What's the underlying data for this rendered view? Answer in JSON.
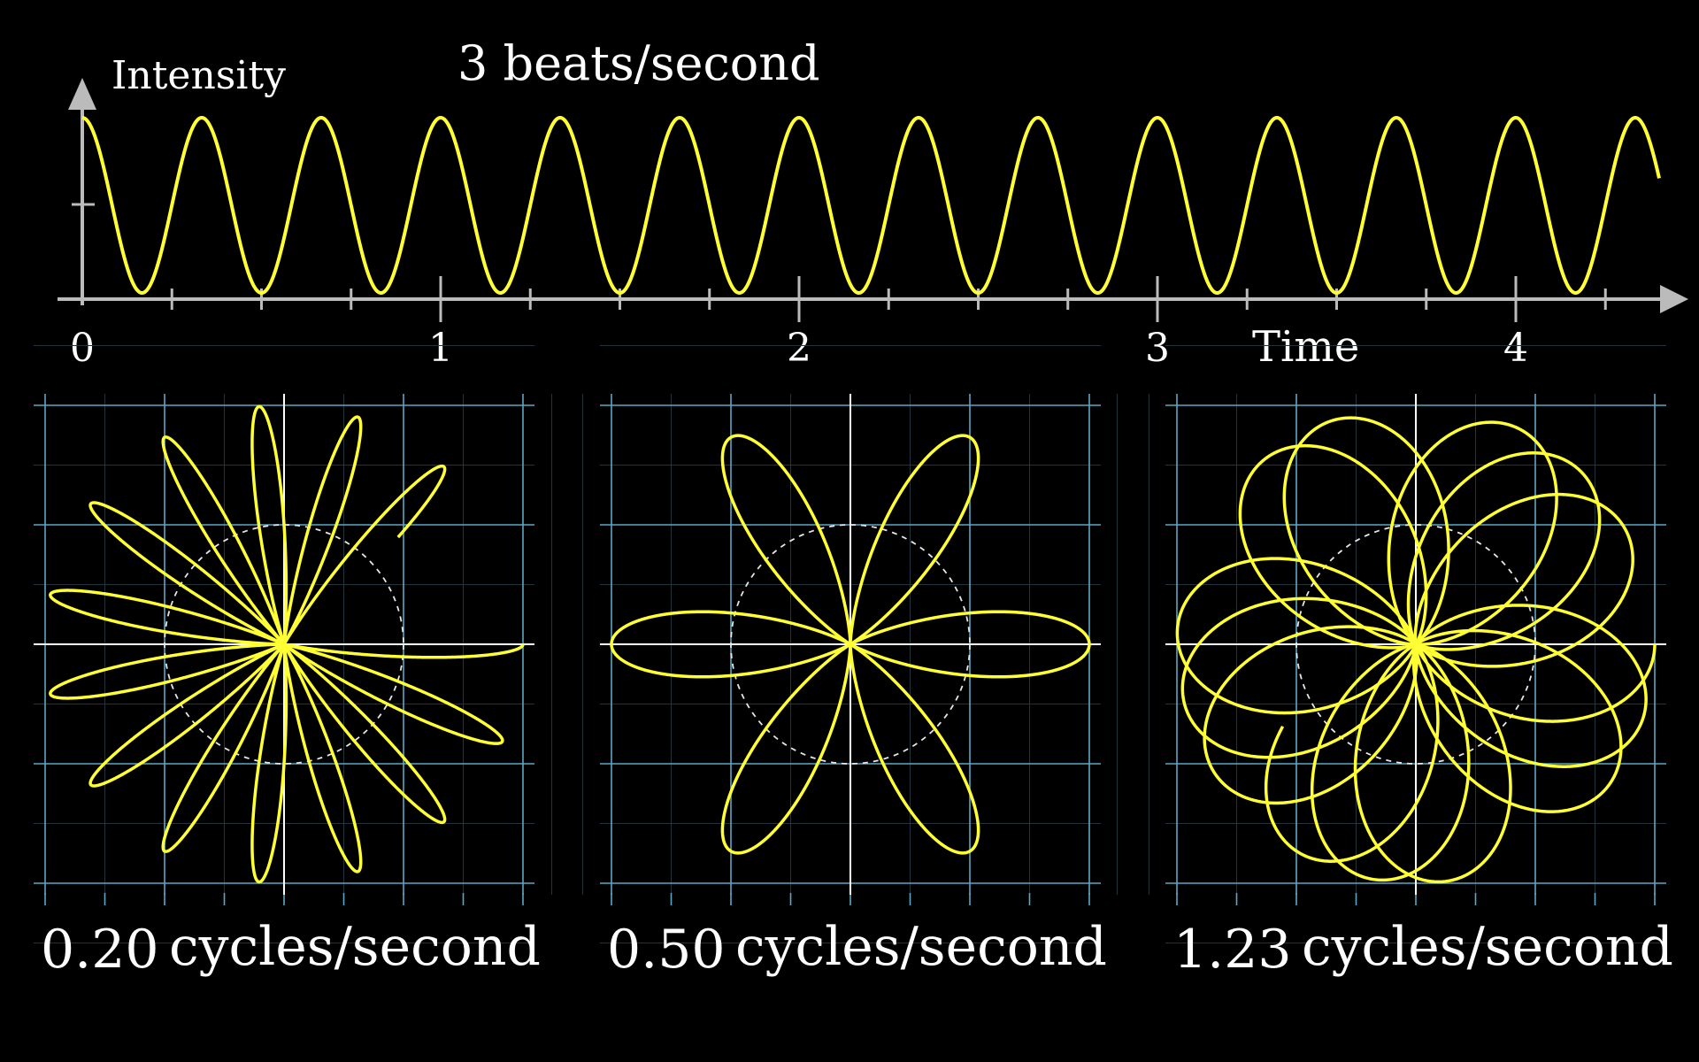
{
  "chart_data": [
    {
      "type": "line",
      "title": "3 beats/second",
      "xlabel": "Time",
      "ylabel": "Intensity",
      "x_ticks": [
        "0",
        "1",
        "2",
        "3",
        "4"
      ],
      "xlim": [
        0,
        4.45
      ],
      "ylim": [
        0,
        2
      ],
      "series": [
        {
          "function": "1 + cos(2*pi*3*t)",
          "frequency": 3,
          "t_range": [
            0,
            4.4
          ],
          "color": "#ffff33"
        }
      ],
      "grid": false
    },
    {
      "type": "line",
      "title": "",
      "winding_frequency": "0.20",
      "label_unit": "cycles/second",
      "signal_frequency": 3,
      "t_range": [
        0,
        4.4
      ],
      "xlim": [
        -2,
        2
      ],
      "ylim": [
        -2,
        2
      ],
      "grid": true,
      "color": "#ffff33"
    },
    {
      "type": "line",
      "title": "",
      "winding_frequency": "0.50",
      "label_unit": "cycles/second",
      "signal_frequency": 3,
      "t_range": [
        0,
        4.4
      ],
      "xlim": [
        -2,
        2
      ],
      "ylim": [
        -2,
        2
      ],
      "grid": true,
      "color": "#ffff33"
    },
    {
      "type": "line",
      "title": "",
      "winding_frequency": "1.23",
      "label_unit": "cycles/second",
      "signal_frequency": 3,
      "t_range": [
        0,
        4.4
      ],
      "xlim": [
        -2,
        2
      ],
      "ylim": [
        -2,
        2
      ],
      "grid": true,
      "color": "#ffff33"
    }
  ]
}
